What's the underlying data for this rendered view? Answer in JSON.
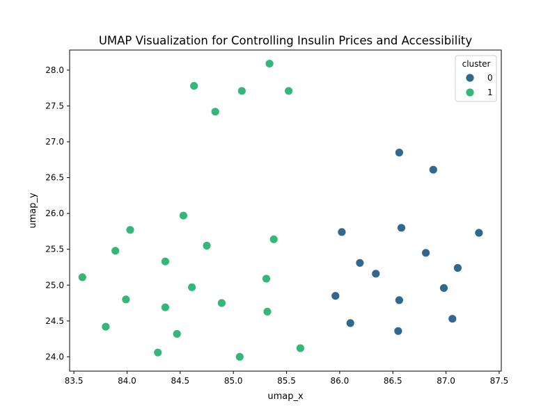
{
  "chart_data": {
    "type": "scatter",
    "title": "UMAP Visualization for Controlling Insulin Prices and Accessibility",
    "xlabel": "umap_x",
    "ylabel": "umap_y",
    "xlim": [
      83.46,
      87.52
    ],
    "ylim": [
      23.8,
      28.28
    ],
    "xticks": [
      83.5,
      84.0,
      84.5,
      85.0,
      85.5,
      86.0,
      86.5,
      87.0,
      87.5
    ],
    "yticks": [
      24.0,
      24.5,
      25.0,
      25.5,
      26.0,
      26.5,
      27.0,
      27.5,
      28.0
    ],
    "xtick_labels": [
      "83.5",
      "84.0",
      "84.5",
      "85.0",
      "85.5",
      "86.0",
      "86.5",
      "87.0",
      "87.5"
    ],
    "ytick_labels": [
      "24.0",
      "24.5",
      "25.0",
      "25.5",
      "26.0",
      "26.5",
      "27.0",
      "27.5",
      "28.0"
    ],
    "grid": false,
    "legend": {
      "title": "cluster",
      "placement": "top-right"
    },
    "series": [
      {
        "name": "0",
        "color": "#31688e",
        "points": [
          [
            86.56,
            26.85
          ],
          [
            86.88,
            26.61
          ],
          [
            86.02,
            25.74
          ],
          [
            86.58,
            25.8
          ],
          [
            87.31,
            25.73
          ],
          [
            86.81,
            25.45
          ],
          [
            86.19,
            25.31
          ],
          [
            86.34,
            25.16
          ],
          [
            87.11,
            25.24
          ],
          [
            86.98,
            24.96
          ],
          [
            85.96,
            24.85
          ],
          [
            86.56,
            24.79
          ],
          [
            87.06,
            24.53
          ],
          [
            86.1,
            24.47
          ],
          [
            86.55,
            24.36
          ]
        ]
      },
      {
        "name": "1",
        "color": "#35b779",
        "points": [
          [
            85.34,
            28.09
          ],
          [
            84.63,
            27.78
          ],
          [
            85.08,
            27.71
          ],
          [
            85.52,
            27.71
          ],
          [
            84.83,
            27.42
          ],
          [
            84.53,
            25.97
          ],
          [
            84.03,
            25.77
          ],
          [
            84.75,
            25.55
          ],
          [
            85.38,
            25.64
          ],
          [
            83.89,
            25.48
          ],
          [
            84.36,
            25.33
          ],
          [
            83.58,
            25.11
          ],
          [
            85.31,
            25.09
          ],
          [
            84.61,
            24.97
          ],
          [
            83.99,
            24.8
          ],
          [
            84.89,
            24.75
          ],
          [
            84.36,
            24.69
          ],
          [
            85.32,
            24.63
          ],
          [
            83.8,
            24.42
          ],
          [
            84.47,
            24.32
          ],
          [
            84.29,
            24.06
          ],
          [
            85.63,
            24.12
          ],
          [
            85.06,
            24.0
          ]
        ]
      }
    ]
  }
}
